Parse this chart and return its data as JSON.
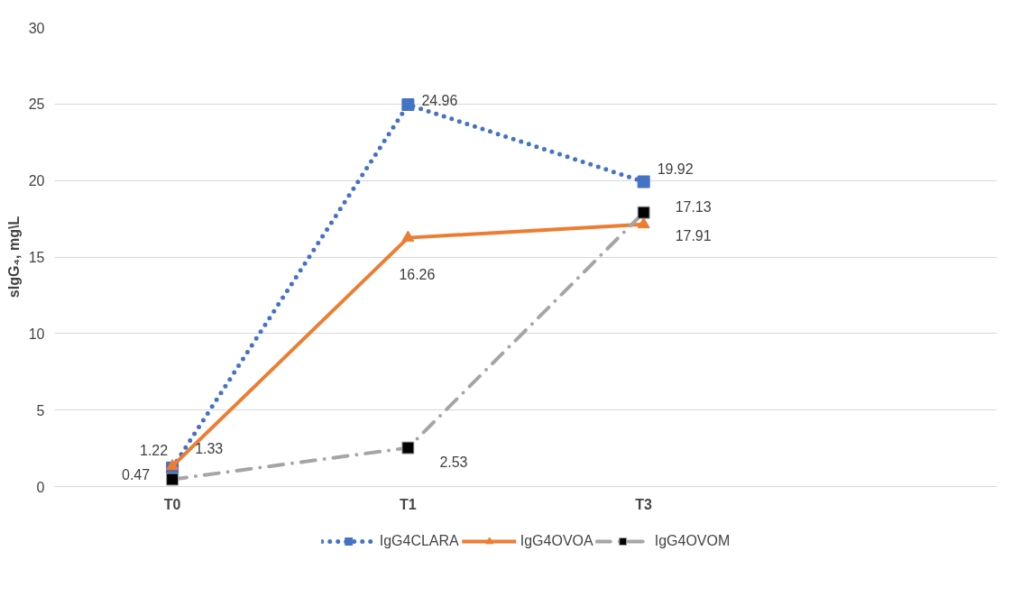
{
  "chart_data": {
    "type": "line",
    "ylabel": "sIgG₄, mg\\L",
    "categories": [
      "T0",
      "T1",
      "T3",
      null
    ],
    "ylim": [
      0,
      30
    ],
    "yticks": [
      0,
      5,
      10,
      15,
      20,
      25,
      30
    ],
    "grid": "y",
    "legend": "bottom",
    "data_labels": true,
    "series": [
      {
        "name": "IgG4CLARA",
        "color": "#4472c4",
        "marker": "square",
        "line_style": "dotted",
        "values": [
          1.22,
          24.96,
          19.92,
          null
        ]
      },
      {
        "name": "IgG4OVOA",
        "color": "#ed7d31",
        "marker": "triangle",
        "line_style": "solid",
        "values": [
          1.33,
          16.26,
          17.13,
          null
        ]
      },
      {
        "name": "IgG4OVOM",
        "color": "#a5a5a5",
        "marker": "square",
        "line_style": "dashdot",
        "values": [
          0.47,
          2.53,
          17.91,
          null
        ]
      }
    ]
  }
}
